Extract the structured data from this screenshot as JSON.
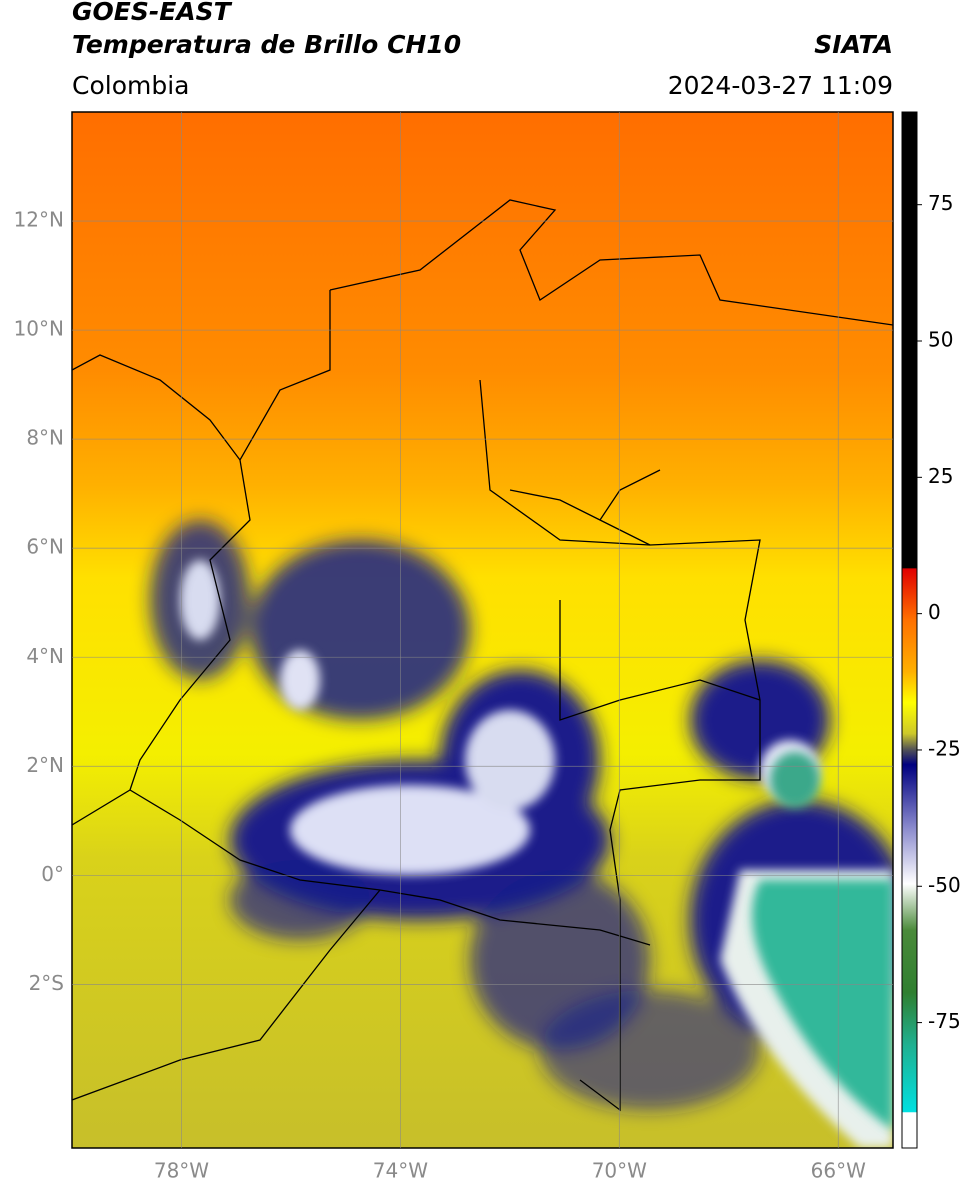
{
  "header": {
    "title_line1": "GOES-EAST",
    "title_line2": "Temperatura de Brillo CH10",
    "region": "Colombia",
    "source": "SIATA",
    "timestamp": "2024-03-27 11:09"
  },
  "map": {
    "xlim": [
      -80,
      -65
    ],
    "ylim": [
      -5,
      14
    ],
    "lon_ticks": [
      {
        "value": -78,
        "label": "78°W"
      },
      {
        "value": -74,
        "label": "74°W"
      },
      {
        "value": -70,
        "label": "70°W"
      },
      {
        "value": -66,
        "label": "66°W"
      }
    ],
    "lat_ticks": [
      {
        "value": 12,
        "label": "12°N"
      },
      {
        "value": 10,
        "label": "10°N"
      },
      {
        "value": 8,
        "label": "8°N"
      },
      {
        "value": 6,
        "label": "6°N"
      },
      {
        "value": 4,
        "label": "4°N"
      },
      {
        "value": 2,
        "label": "2°N"
      },
      {
        "value": 0,
        "label": "0°"
      },
      {
        "value": -2,
        "label": "2°S"
      }
    ]
  },
  "colorbar": {
    "lim": [
      -98,
      92
    ],
    "ticks": [
      75,
      50,
      25,
      0,
      -25,
      -50,
      -75
    ]
  }
}
